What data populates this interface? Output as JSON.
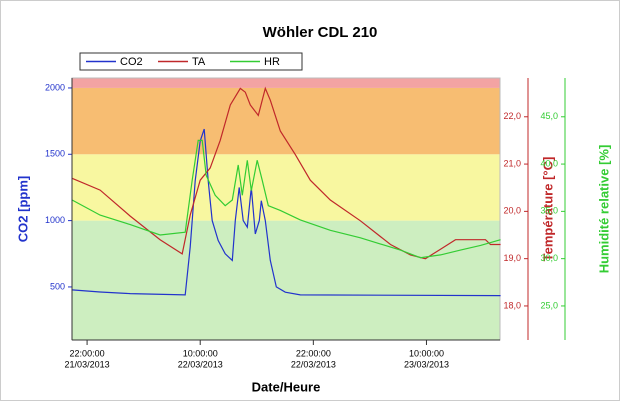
{
  "chart_data": {
    "type": "line",
    "title": "Wöhler CDL 210",
    "xlabel": "Date/Heure",
    "ylabel": "CO2 [ppm]",
    "y2label": "Température [°C]",
    "y3label": "Humidité relative [%]",
    "xlim": [
      -1.6,
      43.8
    ],
    "xticks": [
      {
        "value": 0,
        "label": "22:00:00",
        "date": "21/03/2013"
      },
      {
        "value": 12,
        "label": "10:00:00",
        "date": "22/03/2013"
      },
      {
        "value": 24,
        "label": "22:00:00",
        "date": "22/03/2013"
      },
      {
        "value": 36,
        "label": "10:00:00",
        "date": "23/03/2013"
      }
    ],
    "ylim": [
      100,
      2075
    ],
    "yticks": [
      500,
      1000,
      1500,
      2000
    ],
    "y2lim": [
      17.28,
      22.82
    ],
    "y2ticks": [
      {
        "value": 18,
        "label": "18,0"
      },
      {
        "value": 19,
        "label": "19,0"
      },
      {
        "value": 20,
        "label": "20,0"
      },
      {
        "value": 21,
        "label": "21,0"
      },
      {
        "value": 22,
        "label": "22,0"
      }
    ],
    "y3lim": [
      21.4,
      49.1
    ],
    "y3ticks": [
      {
        "value": 25,
        "label": "25,0"
      },
      {
        "value": 30,
        "label": "30,0"
      },
      {
        "value": 35,
        "label": "35,0"
      },
      {
        "value": 40,
        "label": "40,0"
      },
      {
        "value": 45,
        "label": "45,0"
      }
    ],
    "zones": [
      {
        "from": 100,
        "to": 1000,
        "color": "#cdeec0"
      },
      {
        "from": 1000,
        "to": 1500,
        "color": "#f8f7a0"
      },
      {
        "from": 1500,
        "to": 2000,
        "color": "#f7bd72"
      },
      {
        "from": 2000,
        "to": 2075,
        "color": "#f3a3a3"
      }
    ],
    "series": [
      {
        "name": "CO2",
        "color": "#2233cc",
        "axis": "y",
        "x": [
          -1.59,
          1.38,
          4.57,
          10.41,
          10.94,
          11.47,
          12.0,
          12.42,
          12.85,
          13.27,
          13.91,
          14.65,
          15.4,
          15.72,
          16.14,
          16.56,
          16.99,
          17.42,
          17.84,
          18.27,
          18.48,
          18.9,
          19.43,
          20.07,
          21.03,
          22.62,
          43.86
        ],
        "values": [
          478,
          462,
          450,
          440,
          800,
          1300,
          1600,
          1690,
          1300,
          1000,
          850,
          750,
          700,
          1000,
          1250,
          1000,
          950,
          1250,
          900,
          1000,
          1150,
          1000,
          700,
          500,
          460,
          440,
          435
        ]
      },
      {
        "name": "TA",
        "color": "#c0282a",
        "axis": "y2",
        "x": [
          -1.59,
          1.38,
          4.57,
          7.75,
          10.09,
          10.94,
          12.0,
          13.06,
          14.12,
          15.19,
          16.25,
          16.78,
          17.31,
          18.16,
          18.9,
          19.43,
          20.5,
          22.09,
          23.68,
          25.8,
          28.99,
          32.18,
          34.3,
          35.89,
          37.49,
          39.08,
          42.26,
          42.79,
          43.86
        ],
        "values": [
          20.7,
          20.45,
          19.9,
          19.4,
          19.1,
          19.92,
          20.66,
          20.92,
          21.5,
          22.25,
          22.6,
          22.52,
          22.25,
          22.03,
          22.6,
          22.35,
          21.7,
          21.2,
          20.66,
          20.24,
          19.8,
          19.3,
          19.08,
          19.0,
          19.2,
          19.4,
          19.4,
          19.3,
          19.3
        ]
      },
      {
        "name": "HR",
        "color": "#33cc33",
        "axis": "y3",
        "x": [
          -1.59,
          1.38,
          4.57,
          7.75,
          10.41,
          11.15,
          11.79,
          12.21,
          12.64,
          13.59,
          14.65,
          15.4,
          16.03,
          16.46,
          16.99,
          17.42,
          18.05,
          18.58,
          19.22,
          20.5,
          22.62,
          25.8,
          28.99,
          33.24,
          35.36,
          37.49,
          39.61,
          41.73,
          43.86
        ],
        "values": [
          36.2,
          34.6,
          33.6,
          32.5,
          32.8,
          38.3,
          42.5,
          42.5,
          38.8,
          36.7,
          35.6,
          36.2,
          39.9,
          36.7,
          40.4,
          37.2,
          40.4,
          38.3,
          35.6,
          35.1,
          34.1,
          33.0,
          32.2,
          30.9,
          30.1,
          30.4,
          30.9,
          31.4,
          32.0
        ]
      }
    ]
  }
}
